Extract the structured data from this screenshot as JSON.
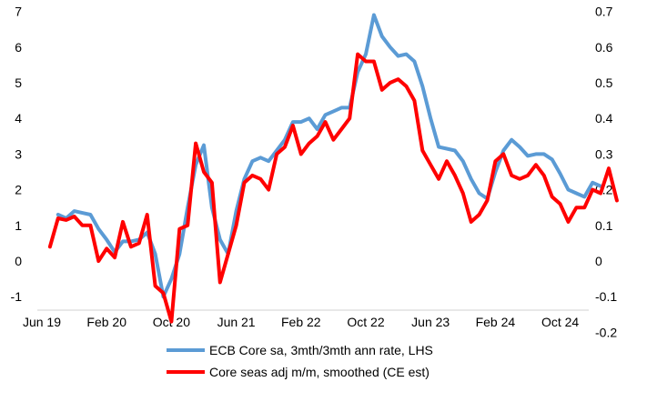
{
  "chart_data": {
    "type": "line",
    "title": "",
    "xlabel": "",
    "ylabel": "",
    "grid": false,
    "legend_position": "bottom",
    "x_tick_labels": [
      "Jun 19",
      "Feb 20",
      "Oct 20",
      "Jun 21",
      "Feb 22",
      "Oct 22",
      "Jun 23",
      "Feb 24",
      "Oct 24"
    ],
    "y_left": {
      "range": [
        -1,
        7
      ],
      "ticks": [
        "-1",
        "0",
        "1",
        "2",
        "3",
        "4",
        "5",
        "6",
        "7"
      ]
    },
    "y_right": {
      "range": [
        -0.2,
        0.7
      ],
      "ticks": [
        "-0.2",
        "-0.1",
        "0",
        "0.1",
        "0.2",
        "0.3",
        "0.4",
        "0.5",
        "0.6",
        "0.7"
      ]
    },
    "x_start": "2019-06",
    "series": [
      {
        "name": "ECB Core sa, 3mth/3mth ann rate, LHS",
        "axis": "left",
        "color": "#5b9bd5",
        "start": "2019-08",
        "values": [
          1.3,
          1.2,
          1.4,
          1.35,
          1.3,
          0.9,
          0.6,
          0.25,
          0.55,
          0.55,
          0.6,
          0.8,
          0.2,
          -1.0,
          -0.5,
          0.2,
          1.5,
          2.7,
          3.25,
          1.5,
          0.6,
          0.2,
          1.4,
          2.3,
          2.8,
          2.9,
          2.8,
          3.1,
          3.4,
          3.9,
          3.9,
          4.0,
          3.7,
          4.1,
          4.2,
          4.3,
          4.3,
          5.3,
          5.8,
          6.9,
          6.3,
          6.0,
          5.75,
          5.8,
          5.6,
          4.9,
          4.0,
          3.2,
          3.15,
          3.1,
          2.8,
          2.3,
          1.9,
          1.75,
          2.5,
          3.1,
          3.4,
          3.2,
          2.95,
          3.0,
          3.0,
          2.85,
          2.45,
          2.0,
          1.9,
          1.8,
          2.2,
          2.1
        ]
      },
      {
        "name": "Core seas adj m/m, smoothed (CE est)",
        "axis": "right",
        "color": "#ff0000",
        "start": "2019-07",
        "values": [
          0.04,
          0.12,
          0.115,
          0.125,
          0.1,
          0.1,
          0.0,
          0.035,
          0.01,
          0.11,
          0.04,
          0.05,
          0.13,
          -0.07,
          -0.09,
          -0.17,
          0.09,
          0.1,
          0.33,
          0.25,
          0.22,
          -0.06,
          0.02,
          0.1,
          0.22,
          0.24,
          0.23,
          0.2,
          0.3,
          0.32,
          0.38,
          0.3,
          0.33,
          0.35,
          0.39,
          0.34,
          0.37,
          0.4,
          0.58,
          0.56,
          0.56,
          0.48,
          0.5,
          0.51,
          0.49,
          0.45,
          0.31,
          0.27,
          0.23,
          0.28,
          0.24,
          0.19,
          0.11,
          0.13,
          0.17,
          0.28,
          0.3,
          0.24,
          0.23,
          0.24,
          0.27,
          0.24,
          0.18,
          0.16,
          0.11,
          0.15,
          0.15,
          0.2,
          0.19,
          0.26,
          0.17
        ]
      }
    ]
  }
}
